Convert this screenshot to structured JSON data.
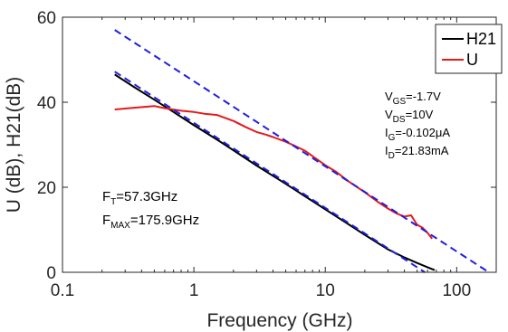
{
  "chart_data": {
    "type": "line",
    "xlabel": "Frequency (GHz)",
    "ylabel": "U (dB), H21(dB)",
    "xscale": "log",
    "xlim": [
      0.1,
      200
    ],
    "ylim": [
      0,
      60
    ],
    "x_ticks": [
      0.1,
      1,
      10,
      100
    ],
    "x_tick_labels": [
      "0.1",
      "1",
      "10",
      "100"
    ],
    "y_ticks": [
      0,
      20,
      40,
      60
    ],
    "y_tick_labels": [
      "0",
      "20",
      "40",
      "60"
    ],
    "legend_position": "top-right",
    "grid": false,
    "series": [
      {
        "name": "H21",
        "color": "#000000",
        "style": "solid",
        "x": [
          0.25,
          0.35,
          0.5,
          0.7,
          1,
          1.5,
          2,
          3,
          5,
          7,
          10,
          15,
          20,
          30,
          40,
          50,
          60,
          68
        ],
        "y": [
          46.5,
          43.6,
          40.6,
          37.7,
          34.6,
          31.2,
          28.7,
          25.1,
          20.8,
          17.9,
          14.8,
          11.3,
          8.8,
          5.4,
          3.5,
          2.2,
          1.2,
          0.5
        ]
      },
      {
        "name": "U",
        "color": "#e31a1c",
        "style": "solid",
        "x": [
          0.25,
          0.35,
          0.5,
          0.6,
          0.8,
          1,
          1.2,
          1.5,
          2,
          2.5,
          3,
          3.5,
          4,
          5,
          6,
          7,
          8,
          10,
          12,
          15,
          20,
          25,
          30,
          35,
          40,
          45,
          50,
          55,
          60,
          65
        ],
        "y": [
          38.3,
          38.7,
          39.1,
          38.6,
          38.0,
          37.7,
          37.3,
          37.0,
          35.6,
          34.1,
          33.0,
          32.4,
          31.8,
          30.7,
          29.6,
          28.6,
          27.3,
          25.2,
          23.7,
          21.4,
          18.8,
          16.6,
          15.0,
          13.8,
          13.1,
          13.4,
          11.2,
          10.5,
          9.3,
          7.9
        ]
      },
      {
        "name": "",
        "color": "#1f1fe0",
        "style": "dashed",
        "x": [
          0.25,
          57.3
        ],
        "y": [
          47.2,
          0
        ]
      },
      {
        "name": "",
        "color": "#1f1fe0",
        "style": "dashed",
        "x": [
          0.25,
          175.9
        ],
        "y": [
          57.0,
          0
        ]
      }
    ],
    "annotations": {
      "conditions": [
        {
          "main": "V",
          "sub": "GS",
          "rest": "=-1.7V"
        },
        {
          "main": "V",
          "sub": "DS",
          "rest": "=10V"
        },
        {
          "main": "I",
          "sub": "G",
          "rest": "=-0.102μA"
        },
        {
          "main": "I",
          "sub": "D",
          "rest": "=21.83mA"
        }
      ],
      "figures": [
        {
          "main": "F",
          "sub": "T",
          "rest": "=57.3GHz"
        },
        {
          "main": "F",
          "sub": "MAX",
          "rest": "=175.9GHz"
        }
      ]
    }
  }
}
